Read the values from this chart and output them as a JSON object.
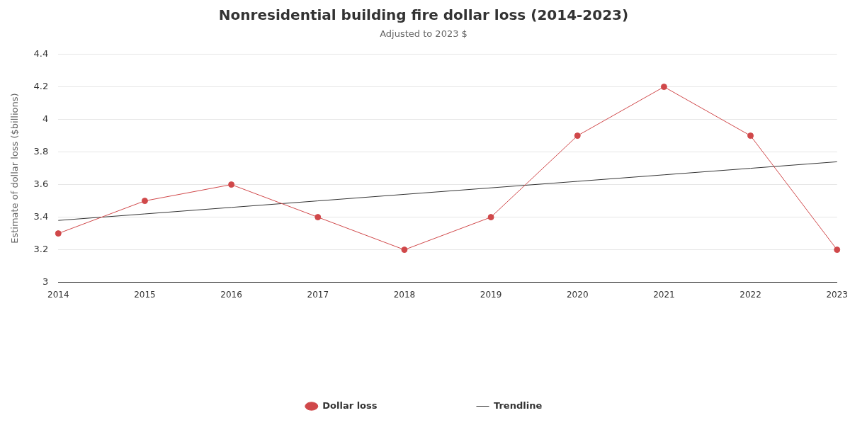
{
  "chart_data": {
    "type": "line",
    "title": "Nonresidential building fire dollar loss (2014-2023)",
    "subtitle": "Adjusted to 2023 $",
    "ylabel": "Estimate of dollar loss ($billions)",
    "categories": [
      "2014",
      "2015",
      "2016",
      "2017",
      "2018",
      "2019",
      "2020",
      "2021",
      "2022",
      "2023"
    ],
    "series": [
      {
        "name": "Dollar loss",
        "color": "#d0484a",
        "values": [
          3.3,
          3.5,
          3.6,
          3.4,
          3.2,
          3.4,
          3.9,
          4.2,
          3.9,
          3.2
        ]
      },
      {
        "name": "Trendline",
        "color": "#333333",
        "marker": "none",
        "values": [
          3.38,
          3.42,
          3.46,
          3.5,
          3.54,
          3.58,
          3.62,
          3.66,
          3.7,
          3.74
        ]
      }
    ],
    "ylim": [
      3,
      4.4
    ],
    "yticks": [
      3,
      3.2,
      3.4,
      3.6,
      3.8,
      4,
      4.2,
      4.4
    ],
    "grid": "y",
    "legend": "bottom",
    "marker": "circle",
    "line_style": "solid"
  }
}
